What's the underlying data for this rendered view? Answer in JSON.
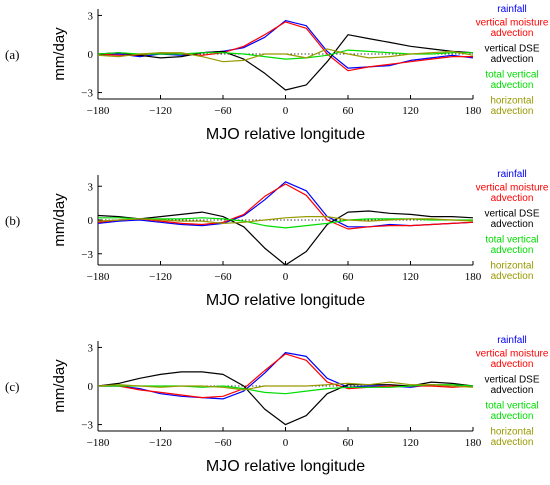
{
  "chart_data": [
    {
      "type": "line",
      "panel_label": "(a)",
      "xlabel": "MJO relative longitude",
      "ylabel": "mm/day",
      "xlim": [
        -180,
        180
      ],
      "ylim": [
        -3.5,
        3.5
      ],
      "xticks": [
        -180,
        -120,
        -60,
        0,
        60,
        120,
        180
      ],
      "yticks": [
        3,
        0,
        -3
      ],
      "xtick_labels": [
        "−180",
        "−120",
        "−60",
        "0",
        "60",
        "120",
        "180"
      ],
      "ytick_labels": [
        "3",
        "0",
        "−3"
      ],
      "legend_placement": "right",
      "series": [
        {
          "name": "rainfall",
          "color": "#0000ff",
          "x": [
            -180,
            -160,
            -140,
            -120,
            -100,
            -80,
            -60,
            -40,
            -20,
            0,
            20,
            40,
            60,
            80,
            100,
            120,
            140,
            160,
            180
          ],
          "y": [
            -0.1,
            0.0,
            -0.2,
            0.0,
            -0.1,
            0.1,
            0.2,
            0.5,
            1.3,
            2.6,
            2.2,
            0.2,
            -1.1,
            -1.0,
            -0.9,
            -0.5,
            -0.3,
            -0.1,
            -0.3
          ]
        },
        {
          "name": "vertical moisture advection",
          "color": "#ff0000",
          "x": [
            -180,
            -160,
            -140,
            -120,
            -100,
            -80,
            -60,
            -40,
            -20,
            0,
            20,
            40,
            60,
            80,
            100,
            120,
            140,
            160,
            180
          ],
          "y": [
            0.0,
            -0.1,
            -0.1,
            0.1,
            0.0,
            -0.1,
            0.1,
            0.6,
            1.5,
            2.5,
            2.0,
            0.0,
            -1.3,
            -1.0,
            -0.8,
            -0.6,
            -0.4,
            -0.2,
            -0.2
          ]
        },
        {
          "name": "vertical DSE advection",
          "color": "#000000",
          "x": [
            -180,
            -160,
            -140,
            -120,
            -100,
            -80,
            -60,
            -40,
            -20,
            0,
            20,
            40,
            60,
            80,
            100,
            120,
            140,
            160,
            180
          ],
          "y": [
            0.0,
            0.1,
            -0.1,
            -0.3,
            -0.2,
            0.1,
            0.2,
            -0.4,
            -1.5,
            -2.8,
            -2.4,
            -0.6,
            1.5,
            1.2,
            0.9,
            0.6,
            0.4,
            0.2,
            0.1
          ]
        },
        {
          "name": "total vertical advection",
          "color": "#00dd00",
          "x": [
            -180,
            -160,
            -140,
            -120,
            -100,
            -80,
            -60,
            -40,
            -20,
            0,
            20,
            40,
            60,
            80,
            100,
            120,
            140,
            160,
            180
          ],
          "y": [
            0.0,
            0.1,
            0.0,
            0.0,
            0.0,
            0.1,
            0.1,
            0.0,
            -0.2,
            -0.4,
            -0.3,
            -0.1,
            0.3,
            0.2,
            0.1,
            0.0,
            0.0,
            0.1,
            0.1
          ]
        },
        {
          "name": "horizontal advection",
          "color": "#999900",
          "x": [
            -180,
            -160,
            -140,
            -120,
            -100,
            -80,
            -60,
            -40,
            -20,
            0,
            20,
            40,
            60,
            80,
            100,
            120,
            140,
            160,
            180
          ],
          "y": [
            -0.1,
            -0.2,
            0.0,
            0.1,
            0.1,
            -0.2,
            -0.6,
            -0.5,
            0.0,
            0.0,
            -0.3,
            0.4,
            0.0,
            -0.3,
            -0.2,
            0.0,
            0.1,
            0.2,
            -0.1
          ]
        }
      ]
    },
    {
      "type": "line",
      "panel_label": "(b)",
      "xlabel": "MJO relative longitude",
      "ylabel": "mm/day",
      "xlim": [
        -180,
        180
      ],
      "ylim": [
        -4.0,
        4.0
      ],
      "xticks": [
        -180,
        -120,
        -60,
        0,
        60,
        120,
        180
      ],
      "yticks": [
        3,
        0,
        -3
      ],
      "xtick_labels": [
        "−180",
        "−120",
        "−60",
        "0",
        "60",
        "120",
        "180"
      ],
      "ytick_labels": [
        "3",
        "0",
        "−3"
      ],
      "legend_placement": "right",
      "series": [
        {
          "name": "rainfall",
          "color": "#0000ff",
          "x": [
            -180,
            -160,
            -140,
            -120,
            -100,
            -80,
            -60,
            -40,
            -20,
            0,
            20,
            40,
            60,
            80,
            100,
            120,
            140,
            160,
            180
          ],
          "y": [
            -0.3,
            -0.1,
            0.0,
            -0.2,
            -0.4,
            -0.5,
            -0.3,
            0.4,
            1.8,
            3.4,
            2.6,
            0.3,
            -0.6,
            -0.6,
            -0.4,
            -0.5,
            -0.4,
            -0.3,
            -0.2
          ]
        },
        {
          "name": "vertical moisture advection",
          "color": "#ff0000",
          "x": [
            -180,
            -160,
            -140,
            -120,
            -100,
            -80,
            -60,
            -40,
            -20,
            0,
            20,
            40,
            60,
            80,
            100,
            120,
            140,
            160,
            180
          ],
          "y": [
            -0.2,
            0.0,
            0.1,
            -0.1,
            -0.3,
            -0.4,
            -0.2,
            0.5,
            2.1,
            3.2,
            2.2,
            0.0,
            -0.8,
            -0.6,
            -0.5,
            -0.5,
            -0.4,
            -0.3,
            -0.2
          ]
        },
        {
          "name": "vertical DSE advection",
          "color": "#000000",
          "x": [
            -180,
            -160,
            -140,
            -120,
            -100,
            -80,
            -60,
            -40,
            -20,
            0,
            20,
            40,
            60,
            80,
            100,
            120,
            140,
            160,
            180
          ],
          "y": [
            0.4,
            0.3,
            0.1,
            0.3,
            0.5,
            0.7,
            0.3,
            -0.6,
            -2.5,
            -4.0,
            -2.8,
            -0.4,
            0.7,
            0.8,
            0.6,
            0.5,
            0.3,
            0.3,
            0.2
          ]
        },
        {
          "name": "total vertical advection",
          "color": "#00dd00",
          "x": [
            -180,
            -160,
            -140,
            -120,
            -100,
            -80,
            -60,
            -40,
            -20,
            0,
            20,
            40,
            60,
            80,
            100,
            120,
            140,
            160,
            180
          ],
          "y": [
            0.2,
            0.2,
            0.1,
            0.1,
            0.1,
            0.2,
            0.1,
            -0.1,
            -0.5,
            -0.7,
            -0.5,
            -0.3,
            0.0,
            0.1,
            0.1,
            0.1,
            0.0,
            0.0,
            0.0
          ]
        },
        {
          "name": "horizontal advection",
          "color": "#999900",
          "x": [
            -180,
            -160,
            -140,
            -120,
            -100,
            -80,
            -60,
            -40,
            -20,
            0,
            20,
            40,
            60,
            80,
            100,
            120,
            140,
            160,
            180
          ],
          "y": [
            -0.1,
            0.0,
            0.1,
            0.0,
            -0.1,
            -0.1,
            -0.3,
            -0.2,
            0.0,
            0.2,
            0.3,
            0.3,
            0.0,
            -0.1,
            0.0,
            0.1,
            0.1,
            0.0,
            -0.1
          ]
        }
      ]
    },
    {
      "type": "line",
      "panel_label": "(c)",
      "xlabel": "MJO relative longitude",
      "ylabel": "mm/day",
      "xlim": [
        -180,
        180
      ],
      "ylim": [
        -3.5,
        3.5
      ],
      "xticks": [
        -180,
        -120,
        -60,
        0,
        60,
        120,
        180
      ],
      "yticks": [
        3,
        0,
        -3
      ],
      "xtick_labels": [
        "−180",
        "−120",
        "−60",
        "0",
        "60",
        "120",
        "180"
      ],
      "ytick_labels": [
        "3",
        "0",
        "−3"
      ],
      "legend_placement": "right",
      "series": [
        {
          "name": "rainfall",
          "color": "#0000ff",
          "x": [
            -180,
            -160,
            -140,
            -120,
            -100,
            -80,
            -60,
            -40,
            -20,
            0,
            20,
            40,
            60,
            80,
            100,
            120,
            140,
            160,
            180
          ],
          "y": [
            0.0,
            0.0,
            -0.2,
            -0.6,
            -0.8,
            -0.9,
            -1.0,
            -0.4,
            1.0,
            2.6,
            2.3,
            0.6,
            -0.1,
            0.0,
            0.0,
            -0.1,
            0.1,
            0.0,
            0.0
          ]
        },
        {
          "name": "vertical moisture advection",
          "color": "#ff0000",
          "x": [
            -180,
            -160,
            -140,
            -120,
            -100,
            -80,
            -60,
            -40,
            -20,
            0,
            20,
            40,
            60,
            80,
            100,
            120,
            140,
            160,
            180
          ],
          "y": [
            0.0,
            0.0,
            -0.3,
            -0.5,
            -0.7,
            -0.9,
            -0.8,
            -0.2,
            1.2,
            2.5,
            2.0,
            0.3,
            -0.2,
            -0.1,
            0.0,
            0.0,
            0.0,
            -0.1,
            0.0
          ]
        },
        {
          "name": "vertical DSE advection",
          "color": "#000000",
          "x": [
            -180,
            -160,
            -140,
            -120,
            -100,
            -80,
            -60,
            -40,
            -20,
            0,
            20,
            40,
            60,
            80,
            100,
            120,
            140,
            160,
            180
          ],
          "y": [
            0.0,
            0.2,
            0.6,
            0.9,
            1.1,
            1.1,
            0.9,
            0.0,
            -1.8,
            -3.0,
            -2.3,
            -0.6,
            0.1,
            0.1,
            0.1,
            0.0,
            0.3,
            0.2,
            0.0
          ]
        },
        {
          "name": "total vertical advection",
          "color": "#00dd00",
          "x": [
            -180,
            -160,
            -140,
            -120,
            -100,
            -80,
            -60,
            -40,
            -20,
            0,
            20,
            40,
            60,
            80,
            100,
            120,
            140,
            160,
            180
          ],
          "y": [
            0.0,
            0.0,
            0.0,
            0.0,
            0.0,
            -0.1,
            0.0,
            -0.2,
            -0.5,
            -0.6,
            -0.4,
            -0.2,
            -0.1,
            -0.1,
            -0.1,
            0.0,
            0.1,
            0.1,
            0.0
          ]
        },
        {
          "name": "horizontal advection",
          "color": "#999900",
          "x": [
            -180,
            -160,
            -140,
            -120,
            -100,
            -80,
            -60,
            -40,
            -20,
            0,
            20,
            40,
            60,
            80,
            100,
            120,
            140,
            160,
            180
          ],
          "y": [
            0.0,
            0.1,
            0.0,
            -0.1,
            0.0,
            0.0,
            -0.1,
            -0.3,
            0.0,
            0.0,
            0.0,
            0.1,
            0.2,
            0.1,
            0.3,
            0.1,
            0.1,
            0.0,
            -0.1
          ]
        }
      ]
    }
  ]
}
